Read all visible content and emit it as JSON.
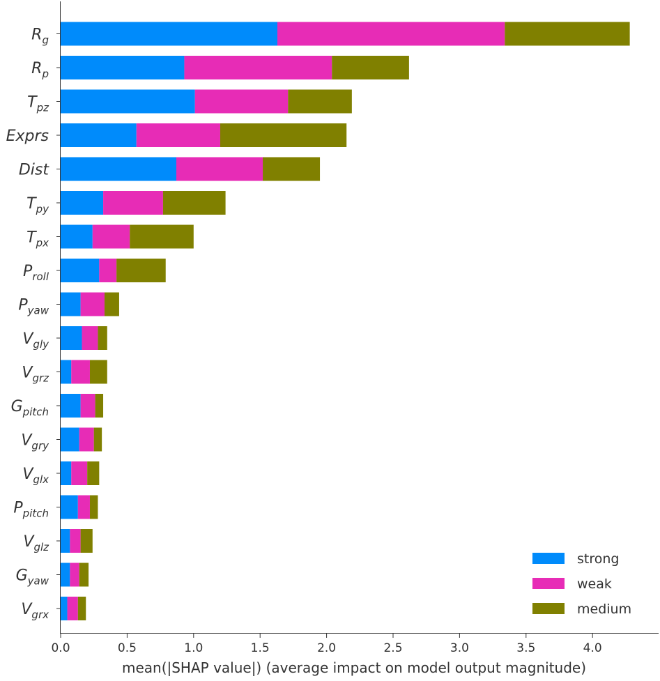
{
  "chart_data": {
    "type": "bar",
    "orientation": "horizontal",
    "stacked": true,
    "xlabel": "mean(|SHAP value|) (average impact on model output magnitude)",
    "ylabel": "",
    "xlim": [
      0,
      4.5
    ],
    "xticks": [
      "0.0",
      "0.5",
      "1.0",
      "1.5",
      "2.0",
      "2.5",
      "3.0",
      "3.5",
      "4.0"
    ],
    "grid": false,
    "legend_position": "bottom-right",
    "categories": [
      {
        "base": "R",
        "sub": "g"
      },
      {
        "base": "R",
        "sub": "p"
      },
      {
        "base": "T",
        "sub": "pz"
      },
      {
        "base": "Exprs",
        "sub": ""
      },
      {
        "base": "Dist",
        "sub": ""
      },
      {
        "base": "T",
        "sub": "py"
      },
      {
        "base": "T",
        "sub": "px"
      },
      {
        "base": "P",
        "sub": "roll"
      },
      {
        "base": "P",
        "sub": "yaw"
      },
      {
        "base": "V",
        "sub": "gly"
      },
      {
        "base": "V",
        "sub": "grz"
      },
      {
        "base": "G",
        "sub": "pitch"
      },
      {
        "base": "V",
        "sub": "gry"
      },
      {
        "base": "V",
        "sub": "glx"
      },
      {
        "base": "P",
        "sub": "pitch"
      },
      {
        "base": "V",
        "sub": "glz"
      },
      {
        "base": "G",
        "sub": "yaw"
      },
      {
        "base": "V",
        "sub": "grx"
      }
    ],
    "series": [
      {
        "name": "strong",
        "color": "#008bfb",
        "values": [
          1.63,
          0.93,
          1.01,
          0.57,
          0.87,
          0.32,
          0.24,
          0.29,
          0.15,
          0.16,
          0.08,
          0.15,
          0.14,
          0.08,
          0.13,
          0.07,
          0.07,
          0.05
        ]
      },
      {
        "name": "weak",
        "color": "#e72cb6",
        "values": [
          1.71,
          1.11,
          0.7,
          0.63,
          0.65,
          0.45,
          0.28,
          0.13,
          0.18,
          0.12,
          0.14,
          0.11,
          0.11,
          0.12,
          0.09,
          0.08,
          0.07,
          0.08
        ]
      },
      {
        "name": "medium",
        "color": "#808000",
        "values": [
          0.94,
          0.58,
          0.48,
          0.95,
          0.43,
          0.47,
          0.48,
          0.37,
          0.11,
          0.07,
          0.13,
          0.06,
          0.06,
          0.09,
          0.06,
          0.09,
          0.07,
          0.06
        ]
      }
    ]
  }
}
